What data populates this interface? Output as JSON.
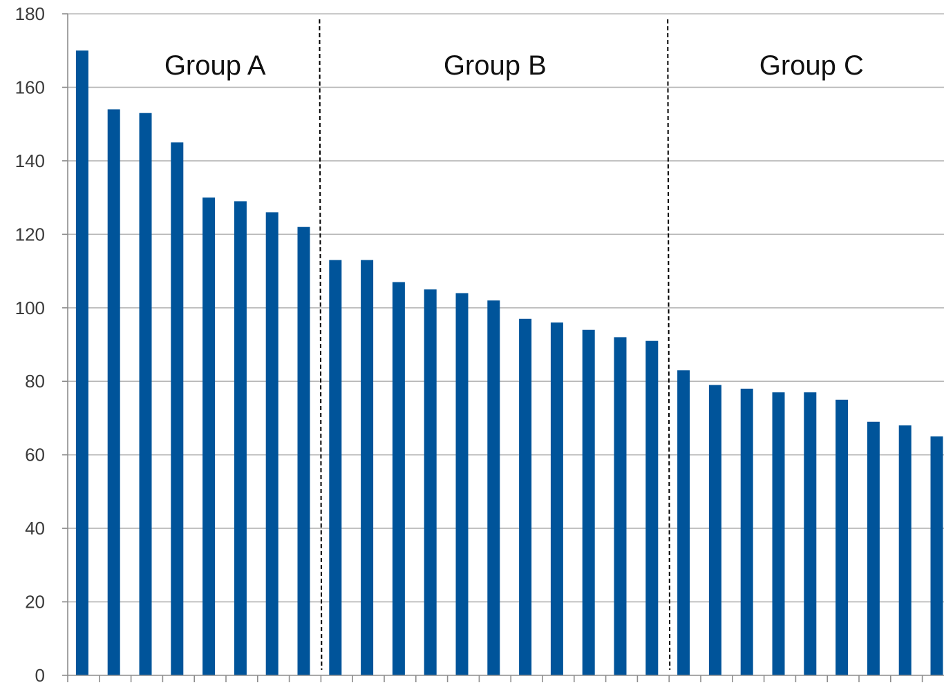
{
  "chart_data": {
    "type": "bar",
    "title": "",
    "xlabel": "",
    "ylabel": "",
    "ylim": [
      0,
      180
    ],
    "yticks": [
      0,
      20,
      40,
      60,
      80,
      100,
      120,
      140,
      160,
      180
    ],
    "grid": true,
    "bar_color": "#00549A",
    "values": [
      170,
      154,
      153,
      145,
      130,
      129,
      126,
      122,
      113,
      113,
      107,
      105,
      104,
      102,
      97,
      96,
      94,
      92,
      91,
      83,
      79,
      78,
      77,
      77,
      75,
      69,
      68,
      65
    ],
    "groups": [
      {
        "label": "Group A",
        "start": 0,
        "end": 7
      },
      {
        "label": "Group B",
        "start": 8,
        "end": 18
      },
      {
        "label": "Group C",
        "start": 19,
        "end": 27
      }
    ],
    "separators_after_index": [
      7,
      18
    ]
  }
}
